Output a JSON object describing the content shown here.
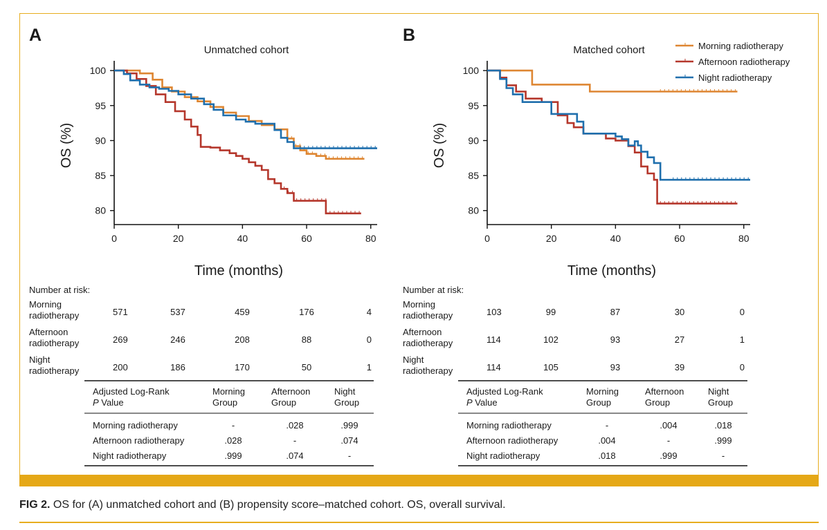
{
  "colors": {
    "morning": "#de8632",
    "afternoon": "#b5372c",
    "night": "#1f6fad",
    "accent": "#e5a817"
  },
  "caption": {
    "label": "FIG 2.",
    "text": " OS for (A) unmatched cohort and (B) propensity score–matched cohort. OS, overall survival."
  },
  "chart_data": [
    {
      "type": "line",
      "panel_label": "A",
      "title": "Unmatched cohort",
      "xlabel": "Time (months)",
      "ylabel": "OS (%)",
      "xlim": [
        0,
        82
      ],
      "ylim": [
        78,
        101
      ],
      "xticks": [
        0,
        20,
        40,
        60,
        80
      ],
      "yticks": [
        80,
        85,
        90,
        95,
        100
      ],
      "grid": false,
      "legend": [],
      "series": [
        {
          "name": "Morning radiotherapy",
          "color": "#de8632",
          "x": [
            0,
            5,
            8,
            12,
            15,
            18,
            22,
            26,
            30,
            34,
            38,
            42,
            46,
            50,
            54,
            56,
            58,
            60,
            63,
            66,
            78
          ],
          "y": [
            100,
            100,
            99.6,
            98.7,
            97.6,
            97,
            96.2,
            95.6,
            94.8,
            94,
            93.5,
            92.8,
            92.2,
            91.6,
            90.3,
            89.2,
            88.6,
            88.1,
            87.8,
            87.4,
            87.4
          ]
        },
        {
          "name": "Afternoon radiotherapy",
          "color": "#b5372c",
          "x": [
            0,
            4,
            7,
            10,
            13,
            16,
            19,
            22,
            24,
            26,
            27,
            30,
            33,
            36,
            38,
            40,
            42,
            44,
            46,
            48,
            50,
            52,
            54,
            56,
            60,
            62,
            65,
            66,
            77
          ],
          "y": [
            100,
            99.6,
            98.8,
            97.8,
            96.6,
            95.5,
            94.2,
            93,
            92,
            90.8,
            89.1,
            89,
            88.6,
            88.2,
            87.8,
            87.4,
            86.9,
            86.4,
            85.8,
            84.5,
            83.9,
            83.1,
            82.5,
            81.4,
            81.4,
            81.4,
            81.4,
            79.6,
            79.6
          ]
        },
        {
          "name": "Night radiotherapy",
          "color": "#1f6fad",
          "x": [
            0,
            3,
            5,
            8,
            11,
            14,
            17,
            20,
            24,
            28,
            31,
            34,
            38,
            41,
            44,
            47,
            50,
            52,
            54,
            56,
            82
          ],
          "y": [
            100,
            99.5,
            98.6,
            98,
            97.6,
            97.4,
            97.1,
            96.6,
            96,
            95.2,
            94.4,
            93.6,
            93,
            92.7,
            92.4,
            92.4,
            91.5,
            90.4,
            89.8,
            88.9,
            88.9
          ]
        }
      ],
      "risk_table": {
        "header": "Number at risk:",
        "rows": [
          {
            "label": [
              "Morning",
              "radiotherapy"
            ],
            "values": [
              "571",
              "537",
              "459",
              "176",
              "4"
            ]
          },
          {
            "label": [
              "Afternoon",
              "radiotherapy"
            ],
            "values": [
              "269",
              "246",
              "208",
              "88",
              "0"
            ]
          },
          {
            "label": [
              "Night",
              "radiotherapy"
            ],
            "values": [
              "200",
              "186",
              "170",
              "50",
              "1"
            ]
          }
        ]
      },
      "pvalue_table": {
        "header_line1": "Adjusted Log-Rank",
        "header_p": "P",
        "header_rest": " Value",
        "columns": [
          [
            "Morning",
            "Group"
          ],
          [
            "Afternoon",
            "Group"
          ],
          [
            "Night",
            "Group"
          ]
        ],
        "rows": [
          {
            "label": "Morning radiotherapy",
            "values": [
              "-",
              ".028",
              ".999"
            ]
          },
          {
            "label": "Afternoon radiotherapy",
            "values": [
              ".028",
              "-",
              ".074"
            ]
          },
          {
            "label": "Night radiotherapy",
            "values": [
              ".999",
              ".074",
              "-"
            ]
          }
        ]
      }
    },
    {
      "type": "line",
      "panel_label": "B",
      "title": "Matched cohort",
      "xlabel": "Time (months)",
      "ylabel": "OS (%)",
      "xlim": [
        0,
        82
      ],
      "ylim": [
        78,
        101
      ],
      "xticks": [
        0,
        20,
        40,
        60,
        80
      ],
      "yticks": [
        80,
        85,
        90,
        95,
        100
      ],
      "grid": false,
      "legend": [
        "Morning radiotherapy",
        "Afternoon radiotherapy",
        "Night radiotherapy"
      ],
      "legend_position": "top-right",
      "series": [
        {
          "name": "Morning radiotherapy",
          "color": "#de8632",
          "x": [
            0,
            14,
            32,
            78
          ],
          "y": [
            100,
            98,
            97,
            97
          ]
        },
        {
          "name": "Afternoon radiotherapy",
          "color": "#b5372c",
          "x": [
            0,
            4,
            6,
            9,
            12,
            17,
            22,
            25,
            27,
            30,
            34,
            37,
            40,
            42,
            44,
            46,
            48,
            50,
            52,
            53,
            78
          ],
          "y": [
            100,
            99,
            97.9,
            97,
            96,
            95.5,
            93.6,
            92.5,
            91.9,
            91,
            91,
            90.3,
            90,
            90,
            89.2,
            88.3,
            86.3,
            85.3,
            84.4,
            81,
            81
          ]
        },
        {
          "name": "Night radiotherapy",
          "color": "#1f6fad",
          "x": [
            0,
            4,
            6,
            8,
            11,
            15,
            20,
            25,
            28,
            30,
            34,
            40,
            42,
            44,
            46,
            47,
            48,
            50,
            52,
            54,
            82
          ],
          "y": [
            100,
            98.8,
            97.5,
            96.6,
            95.5,
            95.5,
            93.8,
            93.8,
            92.7,
            91,
            91,
            90.6,
            90.2,
            89.3,
            89.9,
            89.3,
            88.4,
            87.6,
            86.8,
            84.4,
            84.4
          ]
        }
      ],
      "risk_table": {
        "header": "Number at risk:",
        "rows": [
          {
            "label": [
              "Morning",
              "radiotherapy"
            ],
            "values": [
              "103",
              "99",
              "87",
              "30",
              "0"
            ]
          },
          {
            "label": [
              "Afternoon",
              "radiotherapy"
            ],
            "values": [
              "114",
              "102",
              "93",
              "27",
              "1"
            ]
          },
          {
            "label": [
              "Night",
              "radiotherapy"
            ],
            "values": [
              "114",
              "105",
              "93",
              "39",
              "0"
            ]
          }
        ]
      },
      "pvalue_table": {
        "header_line1": "Adjusted Log-Rank",
        "header_p": "P",
        "header_rest": " Value",
        "columns": [
          [
            "Morning",
            "Group"
          ],
          [
            "Afternoon",
            "Group"
          ],
          [
            "Night",
            "Group"
          ]
        ],
        "rows": [
          {
            "label": "Morning radiotherapy",
            "values": [
              "-",
              ".004",
              ".018"
            ]
          },
          {
            "label": "Afternoon radiotherapy",
            "values": [
              ".004",
              "-",
              ".999"
            ]
          },
          {
            "label": "Night radiotherapy",
            "values": [
              ".018",
              ".999",
              "-"
            ]
          }
        ]
      }
    }
  ]
}
